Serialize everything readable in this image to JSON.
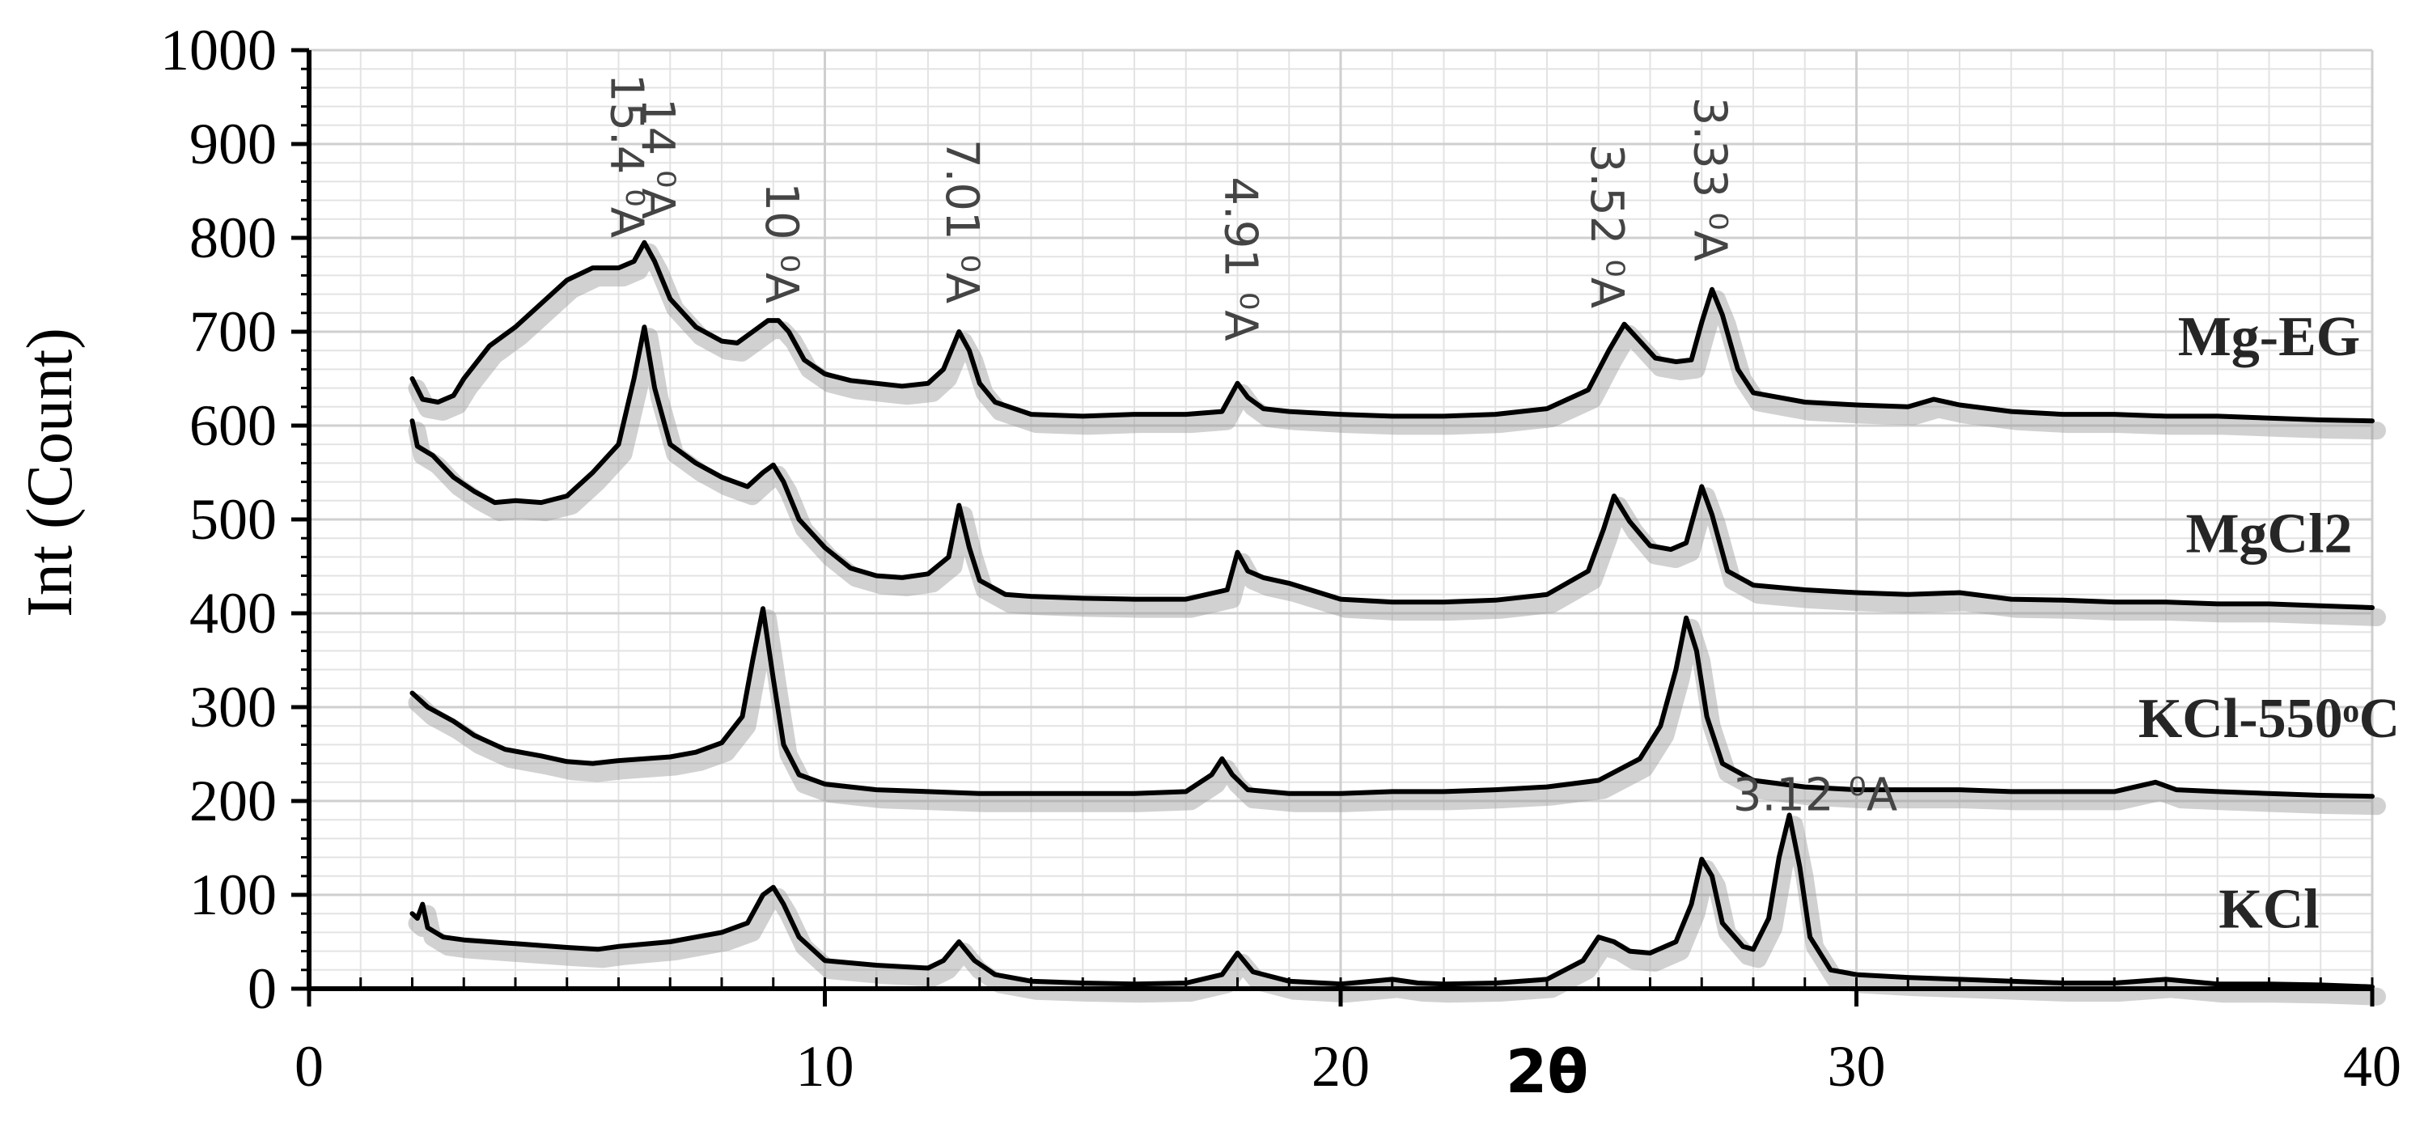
{
  "chart_data": {
    "type": "line",
    "xlabel": "2θ",
    "ylabel": "Int (Count)",
    "xlim": [
      0,
      40
    ],
    "ylim": [
      0,
      1000
    ],
    "x_ticks": [
      0,
      10,
      20,
      30,
      40
    ],
    "y_ticks": [
      0,
      100,
      200,
      300,
      400,
      500,
      600,
      700,
      800,
      900,
      1000
    ],
    "grid": true,
    "series": [
      {
        "name": "Mg-EG",
        "label_at": [
          38.0,
          675
        ],
        "points": [
          [
            2.0,
            650
          ],
          [
            2.2,
            628
          ],
          [
            2.5,
            625
          ],
          [
            2.8,
            632
          ],
          [
            3.0,
            650
          ],
          [
            3.5,
            685
          ],
          [
            4.0,
            705
          ],
          [
            4.5,
            730
          ],
          [
            5.0,
            755
          ],
          [
            5.5,
            768
          ],
          [
            6.0,
            768
          ],
          [
            6.3,
            775
          ],
          [
            6.5,
            795
          ],
          [
            6.7,
            775
          ],
          [
            7.0,
            735
          ],
          [
            7.5,
            705
          ],
          [
            8.0,
            690
          ],
          [
            8.3,
            688
          ],
          [
            8.6,
            700
          ],
          [
            8.9,
            712
          ],
          [
            9.1,
            712
          ],
          [
            9.3,
            700
          ],
          [
            9.6,
            670
          ],
          [
            10.0,
            655
          ],
          [
            10.5,
            648
          ],
          [
            11.0,
            645
          ],
          [
            11.5,
            642
          ],
          [
            12.0,
            645
          ],
          [
            12.3,
            660
          ],
          [
            12.6,
            700
          ],
          [
            12.8,
            680
          ],
          [
            13.0,
            645
          ],
          [
            13.3,
            625
          ],
          [
            14.0,
            612
          ],
          [
            15.0,
            610
          ],
          [
            16.0,
            612
          ],
          [
            17.0,
            612
          ],
          [
            17.7,
            615
          ],
          [
            18.0,
            645
          ],
          [
            18.2,
            630
          ],
          [
            18.5,
            618
          ],
          [
            19.0,
            615
          ],
          [
            20.0,
            612
          ],
          [
            21.0,
            610
          ],
          [
            22.0,
            610
          ],
          [
            23.0,
            612
          ],
          [
            24.0,
            618
          ],
          [
            24.8,
            638
          ],
          [
            25.2,
            680
          ],
          [
            25.5,
            708
          ],
          [
            25.8,
            690
          ],
          [
            26.1,
            672
          ],
          [
            26.5,
            668
          ],
          [
            26.8,
            670
          ],
          [
            27.0,
            710
          ],
          [
            27.2,
            745
          ],
          [
            27.4,
            718
          ],
          [
            27.7,
            660
          ],
          [
            28.0,
            635
          ],
          [
            29.0,
            625
          ],
          [
            30.0,
            622
          ],
          [
            31.0,
            620
          ],
          [
            31.5,
            628
          ],
          [
            32.0,
            622
          ],
          [
            33.0,
            615
          ],
          [
            34.0,
            612
          ],
          [
            35.0,
            612
          ],
          [
            36.0,
            610
          ],
          [
            37.0,
            610
          ],
          [
            38.0,
            608
          ],
          [
            39.0,
            606
          ],
          [
            40.0,
            605
          ]
        ]
      },
      {
        "name": "MgCl2",
        "label_at": [
          38.0,
          465
        ],
        "points": [
          [
            2.0,
            605
          ],
          [
            2.1,
            578
          ],
          [
            2.4,
            568
          ],
          [
            2.8,
            545
          ],
          [
            3.2,
            530
          ],
          [
            3.6,
            518
          ],
          [
            4.0,
            520
          ],
          [
            4.5,
            518
          ],
          [
            5.0,
            525
          ],
          [
            5.5,
            550
          ],
          [
            6.0,
            580
          ],
          [
            6.3,
            650
          ],
          [
            6.5,
            705
          ],
          [
            6.7,
            640
          ],
          [
            7.0,
            580
          ],
          [
            7.5,
            560
          ],
          [
            8.0,
            545
          ],
          [
            8.5,
            535
          ],
          [
            8.8,
            550
          ],
          [
            9.0,
            558
          ],
          [
            9.2,
            540
          ],
          [
            9.5,
            500
          ],
          [
            10.0,
            470
          ],
          [
            10.5,
            448
          ],
          [
            11.0,
            440
          ],
          [
            11.5,
            438
          ],
          [
            12.0,
            442
          ],
          [
            12.4,
            460
          ],
          [
            12.6,
            515
          ],
          [
            12.8,
            470
          ],
          [
            13.0,
            435
          ],
          [
            13.5,
            420
          ],
          [
            14.0,
            418
          ],
          [
            15.0,
            416
          ],
          [
            16.0,
            415
          ],
          [
            17.0,
            415
          ],
          [
            17.8,
            425
          ],
          [
            18.0,
            465
          ],
          [
            18.2,
            445
          ],
          [
            18.5,
            438
          ],
          [
            19.0,
            432
          ],
          [
            20.0,
            415
          ],
          [
            21.0,
            412
          ],
          [
            22.0,
            412
          ],
          [
            23.0,
            414
          ],
          [
            24.0,
            420
          ],
          [
            24.8,
            445
          ],
          [
            25.1,
            490
          ],
          [
            25.3,
            525
          ],
          [
            25.6,
            498
          ],
          [
            26.0,
            472
          ],
          [
            26.4,
            468
          ],
          [
            26.7,
            475
          ],
          [
            27.0,
            535
          ],
          [
            27.2,
            505
          ],
          [
            27.5,
            445
          ],
          [
            28.0,
            430
          ],
          [
            29.0,
            425
          ],
          [
            30.0,
            422
          ],
          [
            31.0,
            420
          ],
          [
            32.0,
            422
          ],
          [
            33.0,
            415
          ],
          [
            34.0,
            414
          ],
          [
            35.0,
            412
          ],
          [
            36.0,
            412
          ],
          [
            37.0,
            410
          ],
          [
            38.0,
            410
          ],
          [
            39.0,
            408
          ],
          [
            40.0,
            406
          ]
        ]
      },
      {
        "name": "KCl-550ᵒC",
        "label_at": [
          38.0,
          268
        ],
        "points": [
          [
            2.0,
            315
          ],
          [
            2.3,
            300
          ],
          [
            2.8,
            285
          ],
          [
            3.2,
            270
          ],
          [
            3.8,
            255
          ],
          [
            4.5,
            248
          ],
          [
            5.0,
            242
          ],
          [
            5.5,
            240
          ],
          [
            6.0,
            243
          ],
          [
            7.0,
            247
          ],
          [
            7.5,
            252
          ],
          [
            8.0,
            262
          ],
          [
            8.4,
            290
          ],
          [
            8.6,
            350
          ],
          [
            8.8,
            405
          ],
          [
            9.0,
            330
          ],
          [
            9.2,
            260
          ],
          [
            9.5,
            228
          ],
          [
            10.0,
            218
          ],
          [
            11.0,
            212
          ],
          [
            12.0,
            210
          ],
          [
            13.0,
            208
          ],
          [
            14.0,
            208
          ],
          [
            15.0,
            208
          ],
          [
            16.0,
            208
          ],
          [
            17.0,
            210
          ],
          [
            17.5,
            228
          ],
          [
            17.7,
            245
          ],
          [
            17.9,
            228
          ],
          [
            18.2,
            212
          ],
          [
            19.0,
            208
          ],
          [
            20.0,
            208
          ],
          [
            21.0,
            210
          ],
          [
            22.0,
            210
          ],
          [
            23.0,
            212
          ],
          [
            24.0,
            215
          ],
          [
            25.0,
            222
          ],
          [
            25.8,
            245
          ],
          [
            26.2,
            280
          ],
          [
            26.5,
            340
          ],
          [
            26.7,
            395
          ],
          [
            26.9,
            360
          ],
          [
            27.1,
            290
          ],
          [
            27.4,
            240
          ],
          [
            28.0,
            222
          ],
          [
            29.0,
            215
          ],
          [
            30.0,
            212
          ],
          [
            31.0,
            212
          ],
          [
            32.0,
            212
          ],
          [
            33.0,
            210
          ],
          [
            34.0,
            210
          ],
          [
            35.0,
            210
          ],
          [
            35.8,
            220
          ],
          [
            36.2,
            212
          ],
          [
            37.0,
            210
          ],
          [
            38.0,
            208
          ],
          [
            39.0,
            206
          ],
          [
            40.0,
            205
          ]
        ]
      },
      {
        "name": "KCl",
        "label_at": [
          38.0,
          65
        ],
        "points": [
          [
            2.0,
            80
          ],
          [
            2.1,
            75
          ],
          [
            2.2,
            90
          ],
          [
            2.3,
            65
          ],
          [
            2.6,
            55
          ],
          [
            3.0,
            52
          ],
          [
            4.0,
            48
          ],
          [
            5.0,
            44
          ],
          [
            5.6,
            42
          ],
          [
            6.0,
            45
          ],
          [
            7.0,
            50
          ],
          [
            7.5,
            55
          ],
          [
            8.0,
            60
          ],
          [
            8.5,
            70
          ],
          [
            8.8,
            100
          ],
          [
            9.0,
            108
          ],
          [
            9.2,
            90
          ],
          [
            9.5,
            55
          ],
          [
            10.0,
            30
          ],
          [
            11.0,
            25
          ],
          [
            12.0,
            22
          ],
          [
            12.3,
            30
          ],
          [
            12.6,
            50
          ],
          [
            12.9,
            30
          ],
          [
            13.3,
            15
          ],
          [
            14.0,
            8
          ],
          [
            15.0,
            6
          ],
          [
            16.0,
            5
          ],
          [
            17.0,
            6
          ],
          [
            17.7,
            15
          ],
          [
            18.0,
            38
          ],
          [
            18.3,
            18
          ],
          [
            19.0,
            8
          ],
          [
            20.0,
            5
          ],
          [
            21.0,
            10
          ],
          [
            21.5,
            6
          ],
          [
            22.0,
            5
          ],
          [
            23.0,
            6
          ],
          [
            24.0,
            10
          ],
          [
            24.7,
            30
          ],
          [
            25.0,
            55
          ],
          [
            25.3,
            50
          ],
          [
            25.6,
            40
          ],
          [
            26.0,
            38
          ],
          [
            26.5,
            50
          ],
          [
            26.8,
            90
          ],
          [
            27.0,
            138
          ],
          [
            27.2,
            120
          ],
          [
            27.4,
            70
          ],
          [
            27.8,
            45
          ],
          [
            28.0,
            42
          ],
          [
            28.3,
            75
          ],
          [
            28.5,
            140
          ],
          [
            28.7,
            185
          ],
          [
            28.9,
            130
          ],
          [
            29.1,
            55
          ],
          [
            29.5,
            20
          ],
          [
            30.0,
            15
          ],
          [
            31.0,
            12
          ],
          [
            32.0,
            10
          ],
          [
            33.0,
            8
          ],
          [
            34.0,
            6
          ],
          [
            35.0,
            6
          ],
          [
            36.0,
            10
          ],
          [
            37.0,
            5
          ],
          [
            38.0,
            5
          ],
          [
            39.0,
            4
          ],
          [
            40.0,
            2
          ]
        ]
      }
    ],
    "annotations": [
      {
        "text": "15.4 ⁰A",
        "x": 6.1,
        "y": 800,
        "rotation": 90
      },
      {
        "text": "14 ⁰A",
        "x": 6.7,
        "y": 820,
        "rotation": 90
      },
      {
        "text": "10 ⁰A",
        "x": 9.1,
        "y": 730,
        "rotation": 90
      },
      {
        "text": "7.01 ⁰A",
        "x": 12.6,
        "y": 730,
        "rotation": 90
      },
      {
        "text": "4.91 ⁰A",
        "x": 18.0,
        "y": 690,
        "rotation": 90
      },
      {
        "text": "3.52 ⁰A",
        "x": 25.1,
        "y": 725,
        "rotation": 90
      },
      {
        "text": "3.33 ⁰A",
        "x": 27.1,
        "y": 775,
        "rotation": 90
      },
      {
        "text": "3.12 ⁰A",
        "x": 29.2,
        "y": 190,
        "rotation": 0
      }
    ]
  }
}
